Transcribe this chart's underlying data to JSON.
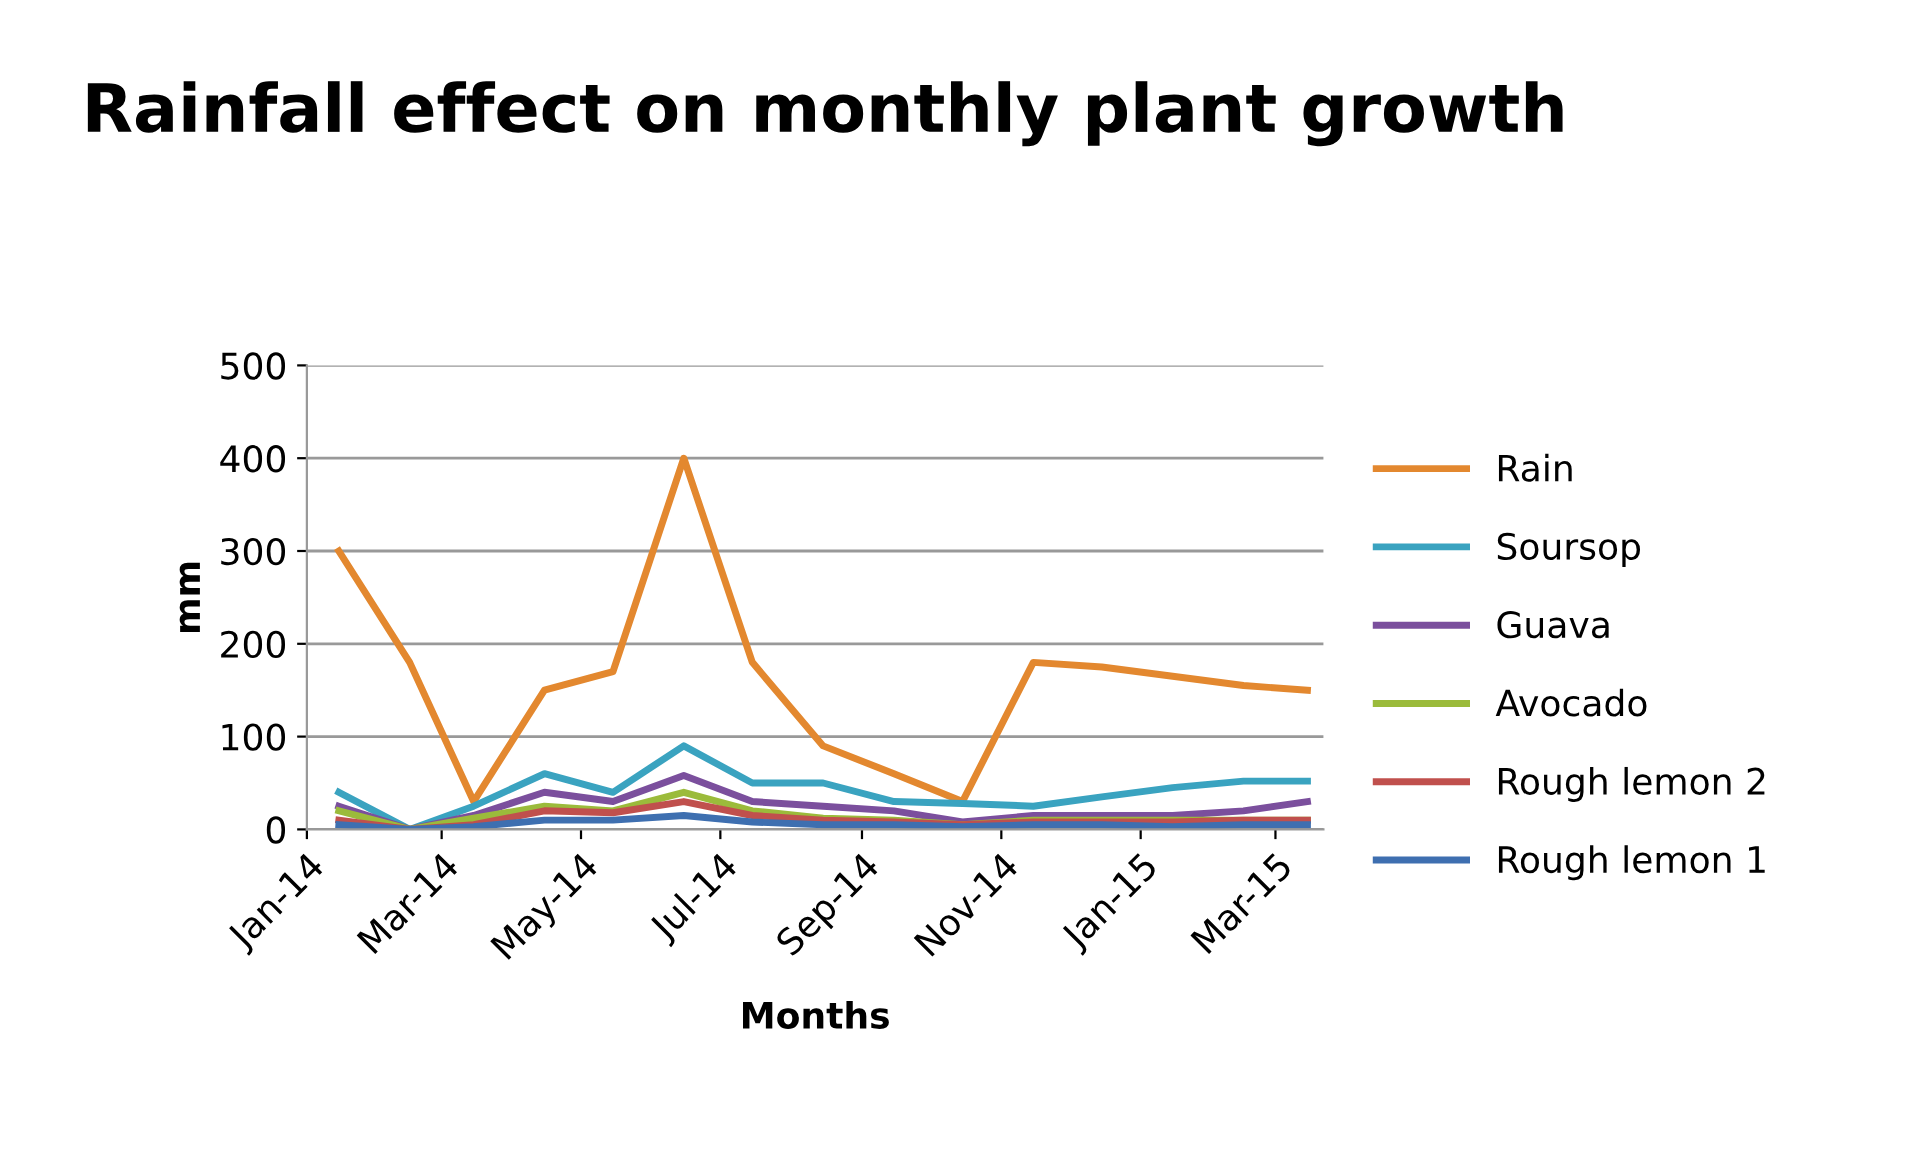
{
  "chart_data": {
    "type": "line",
    "title": "Rainfall effect on monthly plant growth",
    "xlabel": "Months",
    "ylabel": "mm",
    "x": [
      "2014-01-15",
      "2014-02-15",
      "2014-03-15",
      "2014-04-15",
      "2014-05-15",
      "2014-06-15",
      "2014-07-15",
      "2014-08-15",
      "2014-09-15",
      "2014-10-15",
      "2014-11-15",
      "2014-12-15",
      "2015-01-15",
      "2015-02-15",
      "2015-03-15"
    ],
    "series": [
      {
        "name": "Rain",
        "color": "#e3882f",
        "values": [
          300,
          180,
          30,
          150,
          170,
          400,
          180,
          90,
          60,
          30,
          180,
          175,
          165,
          155,
          150
        ]
      },
      {
        "name": "Soursop",
        "color": "#3aa3c0",
        "values": [
          40,
          0,
          25,
          60,
          40,
          90,
          50,
          50,
          30,
          28,
          25,
          35,
          45,
          52,
          52
        ]
      },
      {
        "name": "Guava",
        "color": "#7b4f9d",
        "values": [
          25,
          0,
          15,
          40,
          30,
          58,
          30,
          25,
          20,
          8,
          15,
          15,
          15,
          20,
          30
        ]
      },
      {
        "name": "Avocado",
        "color": "#9bbb3b",
        "values": [
          20,
          0,
          12,
          25,
          20,
          40,
          20,
          12,
          10,
          5,
          10,
          10,
          10,
          10,
          10
        ]
      },
      {
        "name": "Rough lemon 2",
        "color": "#c0504d",
        "values": [
          10,
          0,
          5,
          20,
          18,
          30,
          15,
          10,
          8,
          5,
          8,
          8,
          8,
          10,
          10
        ]
      },
      {
        "name": "Rough lemon 1",
        "color": "#3e6fb0",
        "values": [
          5,
          0,
          3,
          10,
          10,
          15,
          8,
          5,
          5,
          3,
          5,
          5,
          3,
          5,
          5
        ]
      }
    ],
    "xlim": [
      "2014-01-01",
      "2015-03-22"
    ],
    "xticks": [
      {
        "value": "2014-01-01",
        "label": "Jan-14"
      },
      {
        "value": "2014-03-01",
        "label": "Mar-14"
      },
      {
        "value": "2014-05-01",
        "label": "May-14"
      },
      {
        "value": "2014-07-01",
        "label": "Jul-14"
      },
      {
        "value": "2014-09-01",
        "label": "Sep-14"
      },
      {
        "value": "2014-11-01",
        "label": "Nov-14"
      },
      {
        "value": "2015-01-01",
        "label": "Jan-15"
      },
      {
        "value": "2015-03-01",
        "label": "Mar-15"
      }
    ],
    "ylim": [
      0,
      500
    ],
    "yticks": [
      0,
      100,
      200,
      300,
      400,
      500
    ],
    "grid": "y",
    "legend": "right",
    "marker": "none",
    "line_style": "solid"
  }
}
